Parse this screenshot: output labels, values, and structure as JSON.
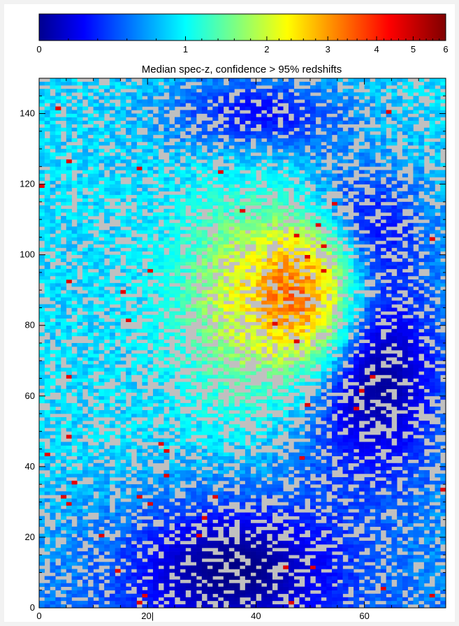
{
  "chart_data": {
    "type": "heatmap",
    "title": "Median spec-z, confidence > 95% redshifts",
    "xlabel": "",
    "ylabel": "",
    "xlim": [
      0,
      75
    ],
    "ylim": [
      0,
      150
    ],
    "x_ticks": [
      "0",
      "20|",
      "40",
      "60"
    ],
    "x_tick_values": [
      0,
      20,
      40,
      60
    ],
    "y_ticks": [
      "0",
      "20",
      "40",
      "60",
      "80",
      "100",
      "120",
      "140"
    ],
    "y_tick_values": [
      0,
      20,
      40,
      60,
      80,
      100,
      120,
      140
    ],
    "grid": false,
    "missing_color": "#c0c0c0",
    "colorbar": {
      "colormap": "jet",
      "scale": "nonlinear",
      "range": [
        0,
        6
      ],
      "tick_labels": [
        "0",
        "1",
        "2",
        "3",
        "4",
        "5",
        "6"
      ],
      "tick_values": [
        0,
        1,
        2,
        3,
        4,
        5,
        6
      ]
    },
    "region_summary": [
      {
        "region": "x 0-35, y 60-150",
        "median_z": 0.9
      },
      {
        "region": "x 30-48, y 70-110",
        "median_z": 2.0
      },
      {
        "region": "x 40-55, y 75-110",
        "median_z": 3.3
      },
      {
        "region": "x 50-75, y 40-95",
        "median_z": 0.1
      },
      {
        "region": "x 20-45, y 0-35",
        "median_z": 0.2
      },
      {
        "region": "x 0-30, y 20-60",
        "median_z": 0.6
      }
    ]
  }
}
